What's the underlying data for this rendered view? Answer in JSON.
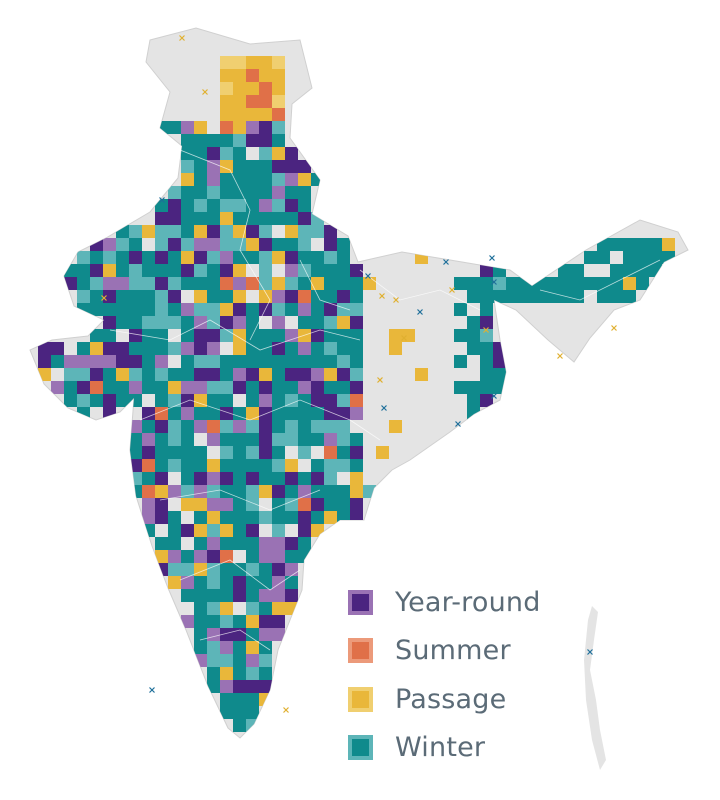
{
  "map": {
    "colors": {
      "land": "#e4e4e4",
      "land_dark": "#d6d6d6",
      "border": "#ffffff",
      "year_round": "#4b2480",
      "year_round_light": "#9a72b4",
      "summer": "#e07048",
      "summer_light": "#ec9a7a",
      "passage": "#e9b73a",
      "passage_light": "#f0cf70",
      "winter": "#0f8a8c",
      "winter_light": "#5db5b8",
      "marker_blue": "#1f6f9a",
      "marker_yellow": "#e0b030"
    },
    "icons": {
      "marker": "cross-marker-icon"
    }
  },
  "legend": {
    "items": [
      {
        "key": "year_round",
        "label": "Year-round",
        "color": "#4b2480",
        "border": "#9a72b4"
      },
      {
        "key": "summer",
        "label": "Summer",
        "color": "#e07048",
        "border": "#ec9a7a"
      },
      {
        "key": "passage",
        "label": "Passage",
        "color": "#e9b73a",
        "border": "#f0cf70"
      },
      {
        "key": "winter",
        "label": "Winter",
        "color": "#0f8a8c",
        "border": "#5db5b8"
      }
    ]
  }
}
